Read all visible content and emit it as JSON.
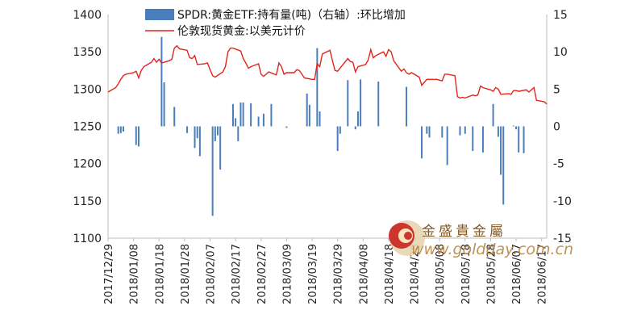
{
  "chart_data": {
    "type": "bar+line",
    "categories_shown": [
      "2017/12/29",
      "2018/01/08",
      "2018/01/18",
      "2018/01/28",
      "2018/02/07",
      "2018/02/17",
      "2018/02/27",
      "2018/03/09",
      "2018/03/19",
      "2018/03/29",
      "2018/04/08",
      "2018/04/18",
      "2018/04/28",
      "2018/05/08",
      "2018/05/18",
      "2018/05/28",
      "2018/06/07",
      "2018/06/17"
    ],
    "x_start": "2017/12/29",
    "x_end": "2018/06/19",
    "y_left": {
      "ylim": [
        1100,
        1400
      ],
      "ticks": [
        1100,
        1150,
        1200,
        1250,
        1300,
        1350,
        1400
      ]
    },
    "y_right": {
      "ylim": [
        -15,
        15
      ],
      "ticks": [
        -15,
        -10,
        -5,
        0,
        5,
        10,
        15
      ]
    },
    "series": [
      {
        "name": "SPDR:黄金ETF:持有量(吨)（右轴）:环比增加",
        "kind": "bar",
        "axis": "right",
        "color": "#4a7ebb",
        "points": [
          [
            "2018/01/02",
            -1.0
          ],
          [
            "2018/01/03",
            -0.9
          ],
          [
            "2018/01/04",
            -0.7
          ],
          [
            "2018/01/09",
            -2.5
          ],
          [
            "2018/01/10",
            -2.7
          ],
          [
            "2018/01/19",
            12.0
          ],
          [
            "2018/01/20",
            5.9
          ],
          [
            "2018/01/24",
            2.6
          ],
          [
            "2018/01/29",
            -0.9
          ],
          [
            "2018/02/01",
            -2.9
          ],
          [
            "2018/02/02",
            -1.6
          ],
          [
            "2018/02/03",
            -4.0
          ],
          [
            "2018/02/08",
            -12.0
          ],
          [
            "2018/02/09",
            -2.0
          ],
          [
            "2018/02/10",
            -1.2
          ],
          [
            "2018/02/11",
            -5.8
          ],
          [
            "2018/02/16",
            3.0
          ],
          [
            "2018/02/17",
            1.1
          ],
          [
            "2018/02/18",
            -2.0
          ],
          [
            "2018/02/19",
            3.2
          ],
          [
            "2018/02/20",
            3.2
          ],
          [
            "2018/02/23",
            3.1
          ],
          [
            "2018/02/26",
            1.3
          ],
          [
            "2018/02/28",
            1.7
          ],
          [
            "2018/03/03",
            3.0
          ],
          [
            "2018/03/09",
            -0.2
          ],
          [
            "2018/03/17",
            4.4
          ],
          [
            "2018/03/18",
            2.9
          ],
          [
            "2018/03/21",
            10.5
          ],
          [
            "2018/03/22",
            2.0
          ],
          [
            "2018/03/29",
            -3.3
          ],
          [
            "2018/03/30",
            -1.0
          ],
          [
            "2018/04/02",
            6.2
          ],
          [
            "2018/04/05",
            -0.4
          ],
          [
            "2018/04/06",
            2.0
          ],
          [
            "2018/04/07",
            6.3
          ],
          [
            "2018/04/14",
            6.0
          ],
          [
            "2018/04/25",
            5.3
          ],
          [
            "2018/05/01",
            -4.3
          ],
          [
            "2018/05/03",
            -1.0
          ],
          [
            "2018/05/04",
            -1.5
          ],
          [
            "2018/05/09",
            -1.5
          ],
          [
            "2018/05/11",
            -5.2
          ],
          [
            "2018/05/16",
            -1.2
          ],
          [
            "2018/05/18",
            -1.0
          ],
          [
            "2018/05/21",
            -3.3
          ],
          [
            "2018/05/25",
            -3.5
          ],
          [
            "2018/05/29",
            3.0
          ],
          [
            "2018/05/31",
            -1.4
          ],
          [
            "2018/06/01",
            -6.5
          ],
          [
            "2018/06/02",
            -10.5
          ],
          [
            "2018/06/06",
            0.1
          ],
          [
            "2018/06/07",
            -0.4
          ],
          [
            "2018/06/08",
            -3.5
          ],
          [
            "2018/06/10",
            -3.6
          ]
        ]
      },
      {
        "name": "伦敦现货黄金:以美元计价",
        "kind": "line",
        "axis": "left",
        "color": "#e3241b",
        "points": [
          [
            "2017/12/29",
            1296
          ],
          [
            "2018/01/01",
            1302
          ],
          [
            "2018/01/02",
            1307
          ],
          [
            "2018/01/03",
            1313
          ],
          [
            "2018/01/04",
            1318
          ],
          [
            "2018/01/05",
            1320
          ],
          [
            "2018/01/08",
            1322
          ],
          [
            "2018/01/09",
            1324
          ],
          [
            "2018/01/10",
            1315
          ],
          [
            "2018/01/11",
            1325
          ],
          [
            "2018/01/12",
            1330
          ],
          [
            "2018/01/15",
            1336
          ],
          [
            "2018/01/16",
            1341
          ],
          [
            "2018/01/17",
            1336
          ],
          [
            "2018/01/18",
            1340
          ],
          [
            "2018/01/19",
            1335
          ],
          [
            "2018/01/22",
            1338
          ],
          [
            "2018/01/23",
            1340
          ],
          [
            "2018/01/24",
            1355
          ],
          [
            "2018/01/25",
            1358
          ],
          [
            "2018/01/26",
            1354
          ],
          [
            "2018/01/29",
            1352
          ],
          [
            "2018/01/30",
            1342
          ],
          [
            "2018/01/31",
            1341
          ],
          [
            "2018/02/01",
            1345
          ],
          [
            "2018/02/02",
            1333
          ],
          [
            "2018/02/05",
            1334
          ],
          [
            "2018/02/06",
            1335
          ],
          [
            "2018/02/07",
            1326
          ],
          [
            "2018/02/08",
            1318
          ],
          [
            "2018/02/09",
            1316
          ],
          [
            "2018/02/12",
            1323
          ],
          [
            "2018/02/13",
            1330
          ],
          [
            "2018/02/14",
            1350
          ],
          [
            "2018/02/15",
            1355
          ],
          [
            "2018/02/16",
            1355
          ],
          [
            "2018/02/19",
            1351
          ],
          [
            "2018/02/20",
            1341
          ],
          [
            "2018/02/21",
            1335
          ],
          [
            "2018/02/22",
            1328
          ],
          [
            "2018/02/23",
            1330
          ],
          [
            "2018/02/26",
            1334
          ],
          [
            "2018/02/27",
            1320
          ],
          [
            "2018/02/28",
            1317
          ],
          [
            "2018/03/01",
            1320
          ],
          [
            "2018/03/02",
            1323
          ],
          [
            "2018/03/05",
            1319
          ],
          [
            "2018/03/06",
            1335
          ],
          [
            "2018/03/07",
            1330
          ],
          [
            "2018/03/08",
            1320
          ],
          [
            "2018/03/09",
            1322
          ],
          [
            "2018/03/12",
            1322
          ],
          [
            "2018/03/13",
            1326
          ],
          [
            "2018/03/14",
            1325
          ],
          [
            "2018/03/15",
            1320
          ],
          [
            "2018/03/16",
            1315
          ],
          [
            "2018/03/19",
            1313
          ],
          [
            "2018/03/20",
            1313
          ],
          [
            "2018/03/21",
            1334
          ],
          [
            "2018/03/22",
            1330
          ],
          [
            "2018/03/23",
            1347
          ],
          [
            "2018/03/26",
            1352
          ],
          [
            "2018/03/27",
            1338
          ],
          [
            "2018/03/28",
            1325
          ],
          [
            "2018/03/29",
            1324
          ],
          [
            "2018/04/02",
            1341
          ],
          [
            "2018/04/03",
            1337
          ],
          [
            "2018/04/04",
            1336
          ],
          [
            "2018/04/05",
            1323
          ],
          [
            "2018/04/06",
            1330
          ],
          [
            "2018/04/09",
            1333
          ],
          [
            "2018/04/10",
            1339
          ],
          [
            "2018/04/11",
            1353
          ],
          [
            "2018/04/12",
            1342
          ],
          [
            "2018/04/13",
            1345
          ],
          [
            "2018/04/16",
            1350
          ],
          [
            "2018/04/17",
            1344
          ],
          [
            "2018/04/18",
            1353
          ],
          [
            "2018/04/19",
            1350
          ],
          [
            "2018/04/20",
            1338
          ],
          [
            "2018/04/23",
            1324
          ],
          [
            "2018/04/24",
            1327
          ],
          [
            "2018/04/25",
            1322
          ],
          [
            "2018/04/26",
            1320
          ],
          [
            "2018/04/27",
            1322
          ],
          [
            "2018/04/30",
            1316
          ],
          [
            "2018/05/01",
            1305
          ],
          [
            "2018/05/02",
            1309
          ],
          [
            "2018/05/03",
            1313
          ],
          [
            "2018/05/04",
            1313
          ],
          [
            "2018/05/07",
            1313
          ],
          [
            "2018/05/08",
            1312
          ],
          [
            "2018/05/09",
            1311
          ],
          [
            "2018/05/10",
            1320
          ],
          [
            "2018/05/11",
            1320
          ],
          [
            "2018/05/14",
            1318
          ],
          [
            "2018/05/15",
            1290
          ],
          [
            "2018/05/16",
            1288
          ],
          [
            "2018/05/17",
            1289
          ],
          [
            "2018/05/18",
            1288
          ],
          [
            "2018/05/21",
            1292
          ],
          [
            "2018/05/22",
            1291
          ],
          [
            "2018/05/23",
            1292
          ],
          [
            "2018/05/24",
            1304
          ],
          [
            "2018/05/25",
            1302
          ],
          [
            "2018/05/28",
            1299
          ],
          [
            "2018/05/29",
            1297
          ],
          [
            "2018/05/30",
            1302
          ],
          [
            "2018/05/31",
            1300
          ],
          [
            "2018/06/01",
            1293
          ],
          [
            "2018/06/04",
            1294
          ],
          [
            "2018/06/05",
            1293
          ],
          [
            "2018/06/06",
            1298
          ],
          [
            "2018/06/07",
            1298
          ],
          [
            "2018/06/08",
            1297
          ],
          [
            "2018/06/11",
            1299
          ],
          [
            "2018/06/12",
            1296
          ],
          [
            "2018/06/13",
            1299
          ],
          [
            "2018/06/14",
            1302
          ],
          [
            "2018/06/15",
            1285
          ],
          [
            "2018/06/18",
            1283
          ],
          [
            "2018/06/19",
            1280
          ]
        ]
      }
    ],
    "legend_placement": "top"
  },
  "watermark": {
    "brand_cn": "金盛貴金屬",
    "url": "www.goldday.com.cn"
  }
}
